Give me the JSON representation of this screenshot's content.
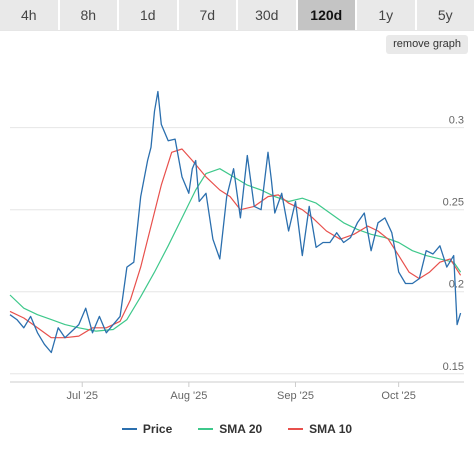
{
  "range_tabs": [
    {
      "label": "4h",
      "active": false
    },
    {
      "label": "8h",
      "active": false
    },
    {
      "label": "1d",
      "active": false
    },
    {
      "label": "7d",
      "active": false
    },
    {
      "label": "30d",
      "active": false
    },
    {
      "label": "120d",
      "active": true
    },
    {
      "label": "1y",
      "active": false
    },
    {
      "label": "5y",
      "active": false
    }
  ],
  "remove_graph_label": "remove graph",
  "colors": {
    "price": "#2b6fae",
    "sma20": "#3ec88b",
    "sma10": "#e8504c",
    "grid": "#e6e6e6",
    "axis_text": "#666666"
  },
  "chart_data": {
    "type": "line",
    "x_range": [
      "2025-06-10",
      "2025-10-20"
    ],
    "y_range": [
      0.145,
      0.34
    ],
    "grid": true,
    "legend_position": "bottom",
    "x_ticks": [
      {
        "date": "2025-07-01",
        "label": "Jul '25"
      },
      {
        "date": "2025-08-01",
        "label": "Aug '25"
      },
      {
        "date": "2025-09-01",
        "label": "Sep '25"
      },
      {
        "date": "2025-10-01",
        "label": "Oct '25"
      }
    ],
    "y_ticks": [
      {
        "value": 0.15,
        "label": "0.15"
      },
      {
        "value": 0.2,
        "label": "0.2"
      },
      {
        "value": 0.25,
        "label": "0.25"
      },
      {
        "value": 0.3,
        "label": "0.3"
      }
    ],
    "series": [
      {
        "name": "Price",
        "points": [
          [
            "2025-06-10",
            0.186
          ],
          [
            "2025-06-12",
            0.183
          ],
          [
            "2025-06-14",
            0.178
          ],
          [
            "2025-06-16",
            0.185
          ],
          [
            "2025-06-18",
            0.175
          ],
          [
            "2025-06-20",
            0.168
          ],
          [
            "2025-06-22",
            0.163
          ],
          [
            "2025-06-24",
            0.178
          ],
          [
            "2025-06-26",
            0.172
          ],
          [
            "2025-06-28",
            0.176
          ],
          [
            "2025-06-30",
            0.18
          ],
          [
            "2025-07-02",
            0.19
          ],
          [
            "2025-07-04",
            0.175
          ],
          [
            "2025-07-06",
            0.185
          ],
          [
            "2025-07-08",
            0.175
          ],
          [
            "2025-07-10",
            0.18
          ],
          [
            "2025-07-12",
            0.185
          ],
          [
            "2025-07-14",
            0.215
          ],
          [
            "2025-07-16",
            0.218
          ],
          [
            "2025-07-18",
            0.258
          ],
          [
            "2025-07-20",
            0.28
          ],
          [
            "2025-07-21",
            0.288
          ],
          [
            "2025-07-22",
            0.31
          ],
          [
            "2025-07-23",
            0.322
          ],
          [
            "2025-07-24",
            0.302
          ],
          [
            "2025-07-26",
            0.292
          ],
          [
            "2025-07-28",
            0.293
          ],
          [
            "2025-07-30",
            0.27
          ],
          [
            "2025-08-01",
            0.26
          ],
          [
            "2025-08-02",
            0.275
          ],
          [
            "2025-08-03",
            0.28
          ],
          [
            "2025-08-04",
            0.255
          ],
          [
            "2025-08-06",
            0.26
          ],
          [
            "2025-08-08",
            0.232
          ],
          [
            "2025-08-10",
            0.22
          ],
          [
            "2025-08-12",
            0.258
          ],
          [
            "2025-08-14",
            0.275
          ],
          [
            "2025-08-16",
            0.245
          ],
          [
            "2025-08-18",
            0.283
          ],
          [
            "2025-08-20",
            0.252
          ],
          [
            "2025-08-22",
            0.25
          ],
          [
            "2025-08-24",
            0.285
          ],
          [
            "2025-08-25",
            0.268
          ],
          [
            "2025-08-26",
            0.248
          ],
          [
            "2025-08-28",
            0.26
          ],
          [
            "2025-08-30",
            0.237
          ],
          [
            "2025-09-01",
            0.255
          ],
          [
            "2025-09-03",
            0.222
          ],
          [
            "2025-09-05",
            0.252
          ],
          [
            "2025-09-07",
            0.227
          ],
          [
            "2025-09-09",
            0.23
          ],
          [
            "2025-09-11",
            0.23
          ],
          [
            "2025-09-13",
            0.236
          ],
          [
            "2025-09-15",
            0.23
          ],
          [
            "2025-09-17",
            0.233
          ],
          [
            "2025-09-19",
            0.242
          ],
          [
            "2025-09-21",
            0.248
          ],
          [
            "2025-09-23",
            0.225
          ],
          [
            "2025-09-25",
            0.242
          ],
          [
            "2025-09-27",
            0.245
          ],
          [
            "2025-09-29",
            0.236
          ],
          [
            "2025-09-30",
            0.225
          ],
          [
            "2025-10-01",
            0.212
          ],
          [
            "2025-10-03",
            0.205
          ],
          [
            "2025-10-05",
            0.205
          ],
          [
            "2025-10-07",
            0.208
          ],
          [
            "2025-10-09",
            0.225
          ],
          [
            "2025-10-11",
            0.223
          ],
          [
            "2025-10-13",
            0.228
          ],
          [
            "2025-10-15",
            0.215
          ],
          [
            "2025-10-17",
            0.222
          ],
          [
            "2025-10-18",
            0.18
          ],
          [
            "2025-10-19",
            0.187
          ]
        ]
      },
      {
        "name": "SMA 20",
        "points": [
          [
            "2025-06-10",
            0.198
          ],
          [
            "2025-06-14",
            0.19
          ],
          [
            "2025-06-18",
            0.186
          ],
          [
            "2025-06-22",
            0.183
          ],
          [
            "2025-06-26",
            0.18
          ],
          [
            "2025-06-30",
            0.178
          ],
          [
            "2025-07-05",
            0.176
          ],
          [
            "2025-07-10",
            0.177
          ],
          [
            "2025-07-14",
            0.183
          ],
          [
            "2025-07-18",
            0.197
          ],
          [
            "2025-07-22",
            0.212
          ],
          [
            "2025-07-26",
            0.228
          ],
          [
            "2025-07-30",
            0.245
          ],
          [
            "2025-08-03",
            0.262
          ],
          [
            "2025-08-06",
            0.272
          ],
          [
            "2025-08-10",
            0.275
          ],
          [
            "2025-08-14",
            0.27
          ],
          [
            "2025-08-18",
            0.265
          ],
          [
            "2025-08-22",
            0.262
          ],
          [
            "2025-08-26",
            0.258
          ],
          [
            "2025-08-30",
            0.255
          ],
          [
            "2025-09-03",
            0.257
          ],
          [
            "2025-09-07",
            0.254
          ],
          [
            "2025-09-11",
            0.248
          ],
          [
            "2025-09-15",
            0.242
          ],
          [
            "2025-09-19",
            0.238
          ],
          [
            "2025-09-23",
            0.235
          ],
          [
            "2025-09-27",
            0.233
          ],
          [
            "2025-10-01",
            0.23
          ],
          [
            "2025-10-05",
            0.225
          ],
          [
            "2025-10-09",
            0.222
          ],
          [
            "2025-10-13",
            0.22
          ],
          [
            "2025-10-17",
            0.218
          ],
          [
            "2025-10-19",
            0.212
          ]
        ]
      },
      {
        "name": "SMA 10",
        "points": [
          [
            "2025-06-10",
            0.188
          ],
          [
            "2025-06-14",
            0.184
          ],
          [
            "2025-06-18",
            0.178
          ],
          [
            "2025-06-22",
            0.172
          ],
          [
            "2025-06-26",
            0.172
          ],
          [
            "2025-06-30",
            0.173
          ],
          [
            "2025-07-04",
            0.178
          ],
          [
            "2025-07-08",
            0.178
          ],
          [
            "2025-07-12",
            0.182
          ],
          [
            "2025-07-15",
            0.195
          ],
          [
            "2025-07-18",
            0.215
          ],
          [
            "2025-07-21",
            0.24
          ],
          [
            "2025-07-24",
            0.265
          ],
          [
            "2025-07-27",
            0.285
          ],
          [
            "2025-07-30",
            0.287
          ],
          [
            "2025-08-02",
            0.28
          ],
          [
            "2025-08-06",
            0.27
          ],
          [
            "2025-08-10",
            0.262
          ],
          [
            "2025-08-13",
            0.258
          ],
          [
            "2025-08-16",
            0.25
          ],
          [
            "2025-08-20",
            0.252
          ],
          [
            "2025-08-24",
            0.258
          ],
          [
            "2025-08-27",
            0.259
          ],
          [
            "2025-08-30",
            0.254
          ],
          [
            "2025-09-03",
            0.25
          ],
          [
            "2025-09-06",
            0.245
          ],
          [
            "2025-09-10",
            0.237
          ],
          [
            "2025-09-14",
            0.232
          ],
          [
            "2025-09-18",
            0.235
          ],
          [
            "2025-09-22",
            0.24
          ],
          [
            "2025-09-25",
            0.237
          ],
          [
            "2025-09-28",
            0.232
          ],
          [
            "2025-10-01",
            0.222
          ],
          [
            "2025-10-04",
            0.212
          ],
          [
            "2025-10-07",
            0.208
          ],
          [
            "2025-10-10",
            0.212
          ],
          [
            "2025-10-13",
            0.218
          ],
          [
            "2025-10-16",
            0.22
          ],
          [
            "2025-10-19",
            0.21
          ]
        ]
      }
    ]
  }
}
